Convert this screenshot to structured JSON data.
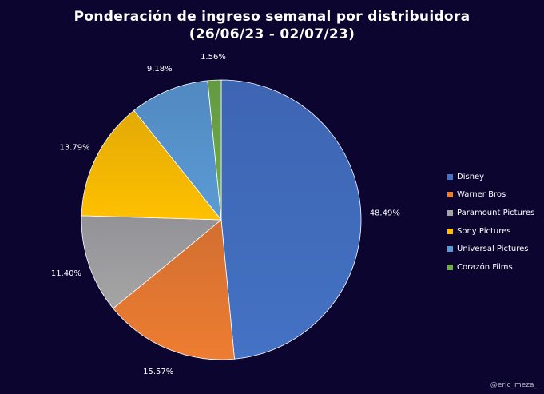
{
  "chart_data": {
    "type": "pie",
    "title_line1": "Ponderación de ingreso semanal por distribuidora",
    "title_line2": "(26/06/23 - 02/07/23)",
    "slices": [
      {
        "label": "Disney",
        "value": 48.49,
        "display": "48.49%",
        "color": "#4472c4"
      },
      {
        "label": "Warner Bros",
        "value": 15.57,
        "display": "15.57%",
        "color": "#ed7d31"
      },
      {
        "label": "Paramount Pictures",
        "value": 11.4,
        "display": "11.40%",
        "color": "#a5a5a5"
      },
      {
        "label": "Sony Pictures",
        "value": 13.79,
        "display": "13.79%",
        "color": "#ffc000"
      },
      {
        "label": "Universal Pictures",
        "value": 9.18,
        "display": "9.18%",
        "color": "#5b9bd5"
      },
      {
        "label": "Corazón Films",
        "value": 1.56,
        "display": "1.56%",
        "color": "#70ad47"
      }
    ],
    "legend_position": "right"
  },
  "credit": "@eric_meza_"
}
